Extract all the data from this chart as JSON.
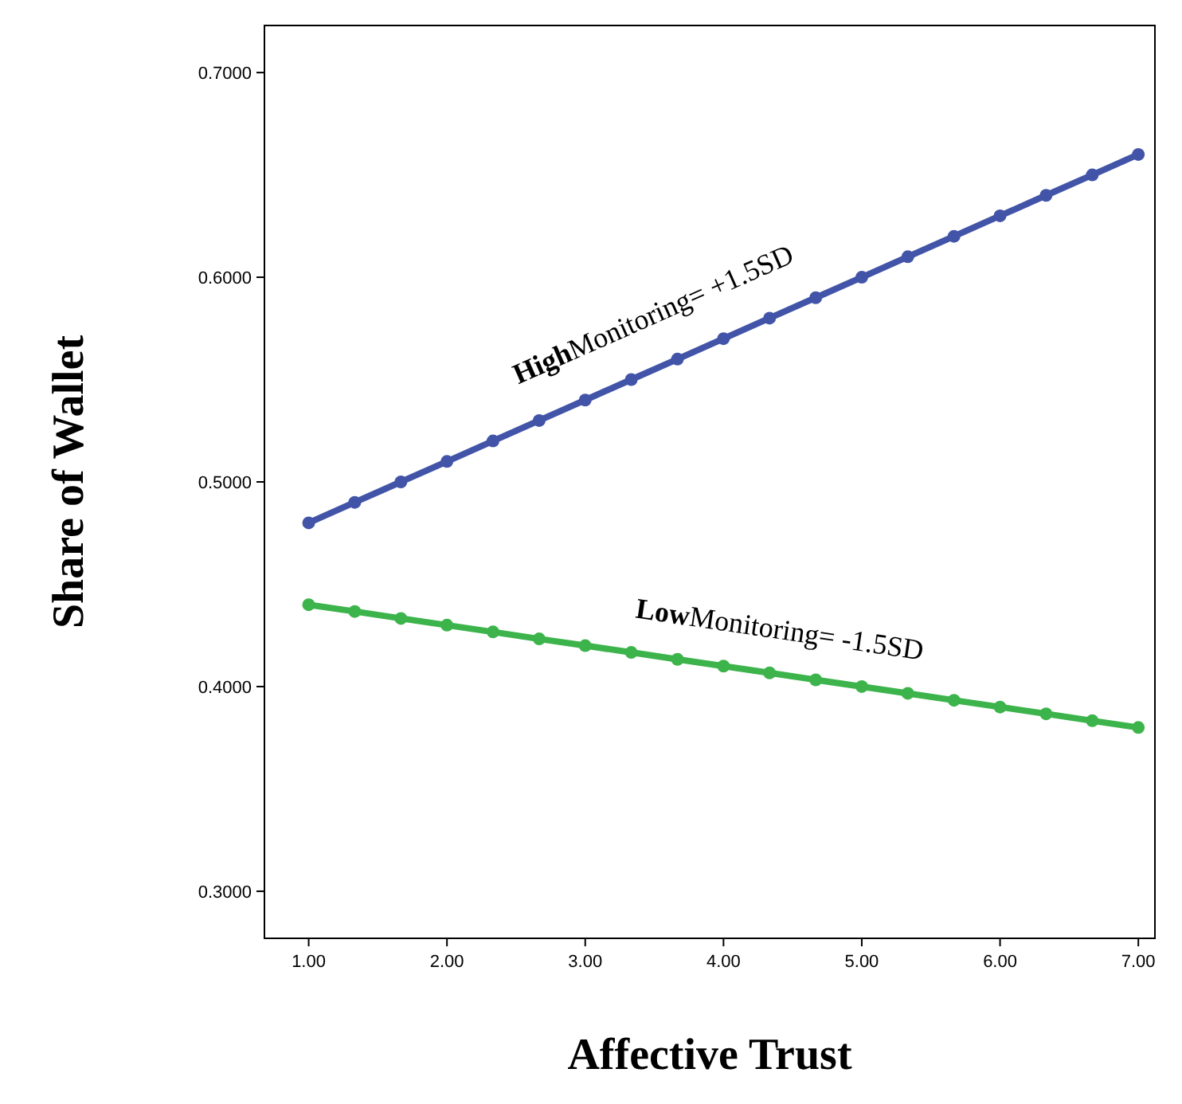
{
  "chart_data": {
    "type": "line",
    "xlabel": "Affective Trust",
    "ylabel": "Share of Wallet",
    "x": [
      1,
      1.333,
      1.667,
      2,
      2.333,
      2.667,
      3,
      3.333,
      3.667,
      4,
      4.333,
      4.667,
      5,
      5.333,
      5.667,
      6,
      6.333,
      6.667,
      7
    ],
    "series": [
      {
        "color": "#4254a8",
        "values": [
          0.48,
          0.49,
          0.5,
          0.51,
          0.52,
          0.53,
          0.54,
          0.55,
          0.56,
          0.57,
          0.58,
          0.59,
          0.6,
          0.61,
          0.62,
          0.63,
          0.64,
          0.65,
          0.66
        ]
      },
      {
        "color": "#3cb44b",
        "values": [
          0.44,
          0.4367,
          0.4333,
          0.43,
          0.4267,
          0.4233,
          0.42,
          0.4167,
          0.4133,
          0.41,
          0.4067,
          0.4033,
          0.4,
          0.3967,
          0.3933,
          0.39,
          0.3867,
          0.3833,
          0.38
        ]
      }
    ],
    "annotations": [
      "High Monitoring= +1.5SD",
      "Low Monitoring= -1.5SD"
    ],
    "xlim": [
      0.68,
      7.12
    ],
    "ylim": [
      0.277,
      0.723
    ],
    "xticks": [
      {
        "value": 1,
        "label": "1.00"
      },
      {
        "value": 2,
        "label": "2.00"
      },
      {
        "value": 3,
        "label": "3.00"
      },
      {
        "value": 4,
        "label": "4.00"
      },
      {
        "value": 5,
        "label": "5.00"
      },
      {
        "value": 6,
        "label": "6.00"
      },
      {
        "value": 7,
        "label": "7.00"
      }
    ],
    "yticks": [
      {
        "value": 0.3,
        "label": "0.3000"
      },
      {
        "value": 0.4,
        "label": "0.4000"
      },
      {
        "value": 0.5,
        "label": "0.5000"
      },
      {
        "value": 0.6,
        "label": "0.6000"
      },
      {
        "value": 0.7,
        "label": "0.7000"
      }
    ],
    "grid": false,
    "marker": "circle",
    "line_style": "solid"
  }
}
